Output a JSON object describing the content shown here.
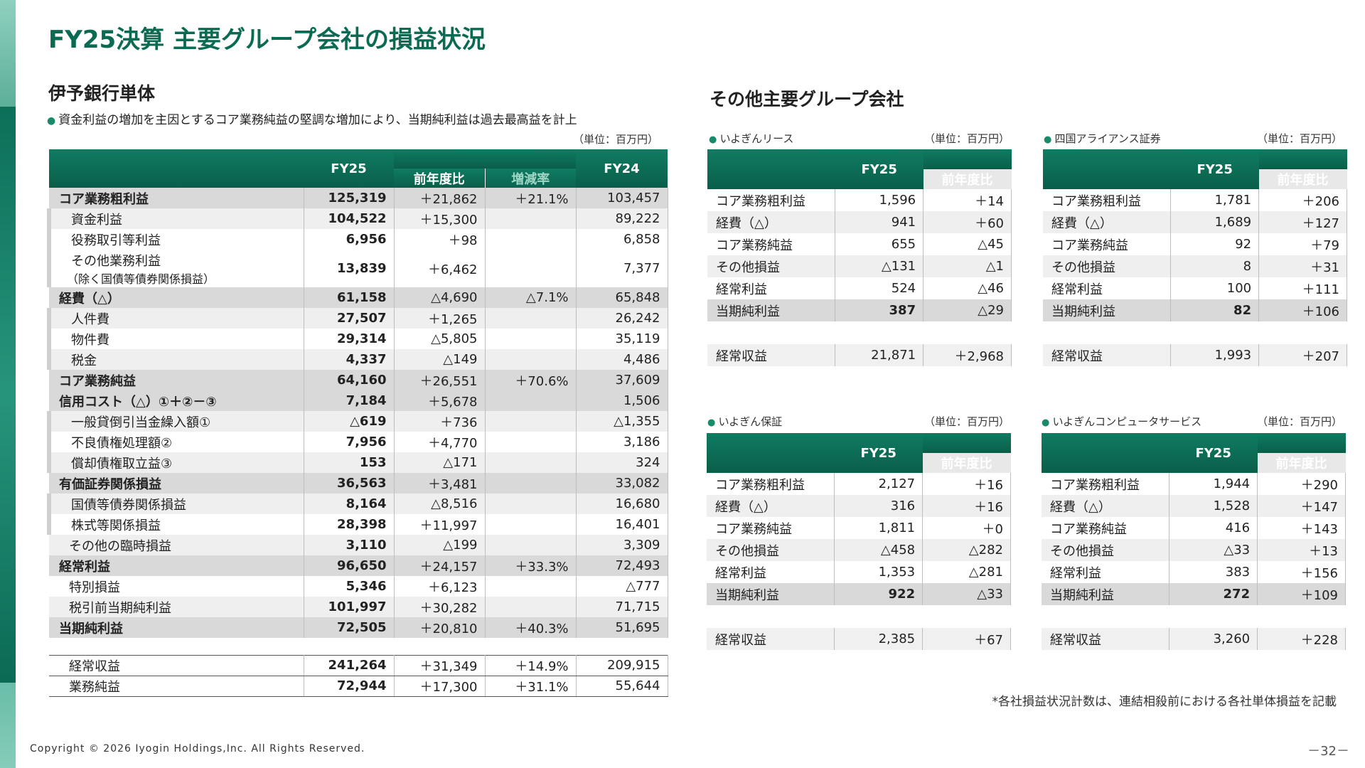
{
  "title": "FY25決算 主要グループ会社の損益状況",
  "bank": {
    "heading": "伊予銀行単体",
    "bullet": "資金利益の増加を主因とするコア業務純益の堅調な増加により、当期純利益は過去最高益を計上",
    "unit": "（単位：百万円）",
    "headers": {
      "fy25": "FY25",
      "yoy": "前年度比",
      "rate": "増減率",
      "fy24": "FY24"
    },
    "rows": [
      {
        "label": "コア業務粗利益",
        "fy25": "125,319",
        "yoy": "＋21,862",
        "rate": "＋21.1%",
        "fy24": "103,457"
      },
      {
        "label": "資金利益",
        "fy25": "104,522",
        "yoy": "＋15,300",
        "rate": "",
        "fy24": "89,222"
      },
      {
        "label": "役務取引等利益",
        "fy25": "6,956",
        "yoy": "＋98",
        "rate": "",
        "fy24": "6,858"
      },
      {
        "label": "その他業務利益",
        "label2": "（除く国債等債券関係損益）",
        "fy25": "13,839",
        "yoy": "＋6,462",
        "rate": "",
        "fy24": "7,377"
      },
      {
        "label": "経費（△）",
        "fy25": "61,158",
        "yoy": "△4,690",
        "rate": "△7.1%",
        "fy24": "65,848"
      },
      {
        "label": "人件費",
        "fy25": "27,507",
        "yoy": "＋1,265",
        "rate": "",
        "fy24": "26,242"
      },
      {
        "label": "物件費",
        "fy25": "29,314",
        "yoy": "△5,805",
        "rate": "",
        "fy24": "35,119"
      },
      {
        "label": "税金",
        "fy25": "4,337",
        "yoy": "△149",
        "rate": "",
        "fy24": "4,486"
      },
      {
        "label": "コア業務純益",
        "fy25": "64,160",
        "yoy": "＋26,551",
        "rate": "＋70.6%",
        "fy24": "37,609"
      },
      {
        "label": "信用コスト（△）①＋②－③",
        "fy25": "7,184",
        "yoy": "＋5,678",
        "rate": "",
        "fy24": "1,506"
      },
      {
        "label": "一般貸倒引当金繰入額①",
        "fy25": "△619",
        "yoy": "＋736",
        "rate": "",
        "fy24": "△1,355"
      },
      {
        "label": "不良債権処理額②",
        "fy25": "7,956",
        "yoy": "＋4,770",
        "rate": "",
        "fy24": "3,186"
      },
      {
        "label": "償却債権取立益③",
        "fy25": "153",
        "yoy": "△171",
        "rate": "",
        "fy24": "324"
      },
      {
        "label": "有価証券関係損益",
        "fy25": "36,563",
        "yoy": "＋3,481",
        "rate": "",
        "fy24": "33,082"
      },
      {
        "label": "国債等債券関係損益",
        "fy25": "8,164",
        "yoy": "△8,516",
        "rate": "",
        "fy24": "16,680"
      },
      {
        "label": "株式等関係損益",
        "fy25": "28,398",
        "yoy": "＋11,997",
        "rate": "",
        "fy24": "16,401"
      },
      {
        "label": "その他の臨時損益",
        "fy25": "3,110",
        "yoy": "△199",
        "rate": "",
        "fy24": "3,309"
      },
      {
        "label": "経常利益",
        "fy25": "96,650",
        "yoy": "＋24,157",
        "rate": "＋33.3%",
        "fy24": "72,493"
      },
      {
        "label": "特別損益",
        "fy25": "5,346",
        "yoy": "＋6,123",
        "rate": "",
        "fy24": "△777"
      },
      {
        "label": "税引前当期純利益",
        "fy25": "101,997",
        "yoy": "＋30,282",
        "rate": "",
        "fy24": "71,715"
      },
      {
        "label": "当期純利益",
        "fy25": "72,505",
        "yoy": "＋20,810",
        "rate": "＋40.3%",
        "fy24": "51,695"
      }
    ],
    "footer": [
      {
        "label": "経常収益",
        "fy25": "241,264",
        "yoy": "＋31,349",
        "rate": "＋14.9%",
        "fy24": "209,915"
      },
      {
        "label": "業務純益",
        "fy25": "72,944",
        "yoy": "＋17,300",
        "rate": "＋31.1%",
        "fy24": "55,644"
      }
    ]
  },
  "others": {
    "heading": "その他主要グループ会社",
    "companies": [
      {
        "name": "いよぎんリース",
        "unit": "（単位：百万円）",
        "h_fy25": "FY25",
        "h_yoy": "前年度比",
        "rows": [
          {
            "label": "コア業務粗利益",
            "fy25": "1,596",
            "yoy": "＋14"
          },
          {
            "label": "経費（△）",
            "fy25": "941",
            "yoy": "＋60"
          },
          {
            "label": "コア業務純益",
            "fy25": "655",
            "yoy": "△45"
          },
          {
            "label": "その他損益",
            "fy25": "△131",
            "yoy": "△1"
          },
          {
            "label": "経常利益",
            "fy25": "524",
            "yoy": "△46"
          },
          {
            "label": "当期純利益",
            "fy25": "387",
            "yoy": "△29"
          }
        ],
        "footer": {
          "label": "経常収益",
          "fy25": "21,871",
          "yoy": "＋2,968"
        }
      },
      {
        "name": "四国アライアンス証券",
        "unit": "（単位：百万円）",
        "h_fy25": "FY25",
        "h_yoy": "前年度比",
        "rows": [
          {
            "label": "コア業務粗利益",
            "fy25": "1,781",
            "yoy": "＋206"
          },
          {
            "label": "経費（△）",
            "fy25": "1,689",
            "yoy": "＋127"
          },
          {
            "label": "コア業務純益",
            "fy25": "92",
            "yoy": "＋79"
          },
          {
            "label": "その他損益",
            "fy25": "8",
            "yoy": "＋31"
          },
          {
            "label": "経常利益",
            "fy25": "100",
            "yoy": "＋111"
          },
          {
            "label": "当期純利益",
            "fy25": "82",
            "yoy": "＋106"
          }
        ],
        "footer": {
          "label": "経常収益",
          "fy25": "1,993",
          "yoy": "＋207"
        }
      },
      {
        "name": "いよぎん保証",
        "unit": "（単位：百万円）",
        "h_fy25": "FY25",
        "h_yoy": "前年度比",
        "rows": [
          {
            "label": "コア業務粗利益",
            "fy25": "2,127",
            "yoy": "＋16"
          },
          {
            "label": "経費（△）",
            "fy25": "316",
            "yoy": "＋16"
          },
          {
            "label": "コア業務純益",
            "fy25": "1,811",
            "yoy": "＋0"
          },
          {
            "label": "その他損益",
            "fy25": "△458",
            "yoy": "△282"
          },
          {
            "label": "経常利益",
            "fy25": "1,353",
            "yoy": "△281"
          },
          {
            "label": "当期純利益",
            "fy25": "922",
            "yoy": "△33"
          }
        ],
        "footer": {
          "label": "経常収益",
          "fy25": "2,385",
          "yoy": "＋67"
        }
      },
      {
        "name": "いよぎんコンピュータサービス",
        "unit": "（単位：百万円）",
        "h_fy25": "FY25",
        "h_yoy": "前年度比",
        "rows": [
          {
            "label": "コア業務粗利益",
            "fy25": "1,944",
            "yoy": "＋290"
          },
          {
            "label": "経費（△）",
            "fy25": "1,528",
            "yoy": "＋147"
          },
          {
            "label": "コア業務純益",
            "fy25": "416",
            "yoy": "＋143"
          },
          {
            "label": "その他損益",
            "fy25": "△33",
            "yoy": "＋13"
          },
          {
            "label": "経常利益",
            "fy25": "383",
            "yoy": "＋156"
          },
          {
            "label": "当期純利益",
            "fy25": "272",
            "yoy": "＋109"
          }
        ],
        "footer": {
          "label": "経常収益",
          "fy25": "3,260",
          "yoy": "＋228"
        }
      }
    ]
  },
  "note": "*各社損益状況計数は、連結相殺前における各社単体損益を記載",
  "copyright": "Copyright © 2026 Iyogin Holdings,Inc. All Rights Reserved.",
  "page_number": "－32－",
  "colors": {
    "brand": "#0a6b52",
    "header": "#0f7c62",
    "row_bold": "#d9d9d9",
    "row_alt": "#efefef"
  }
}
